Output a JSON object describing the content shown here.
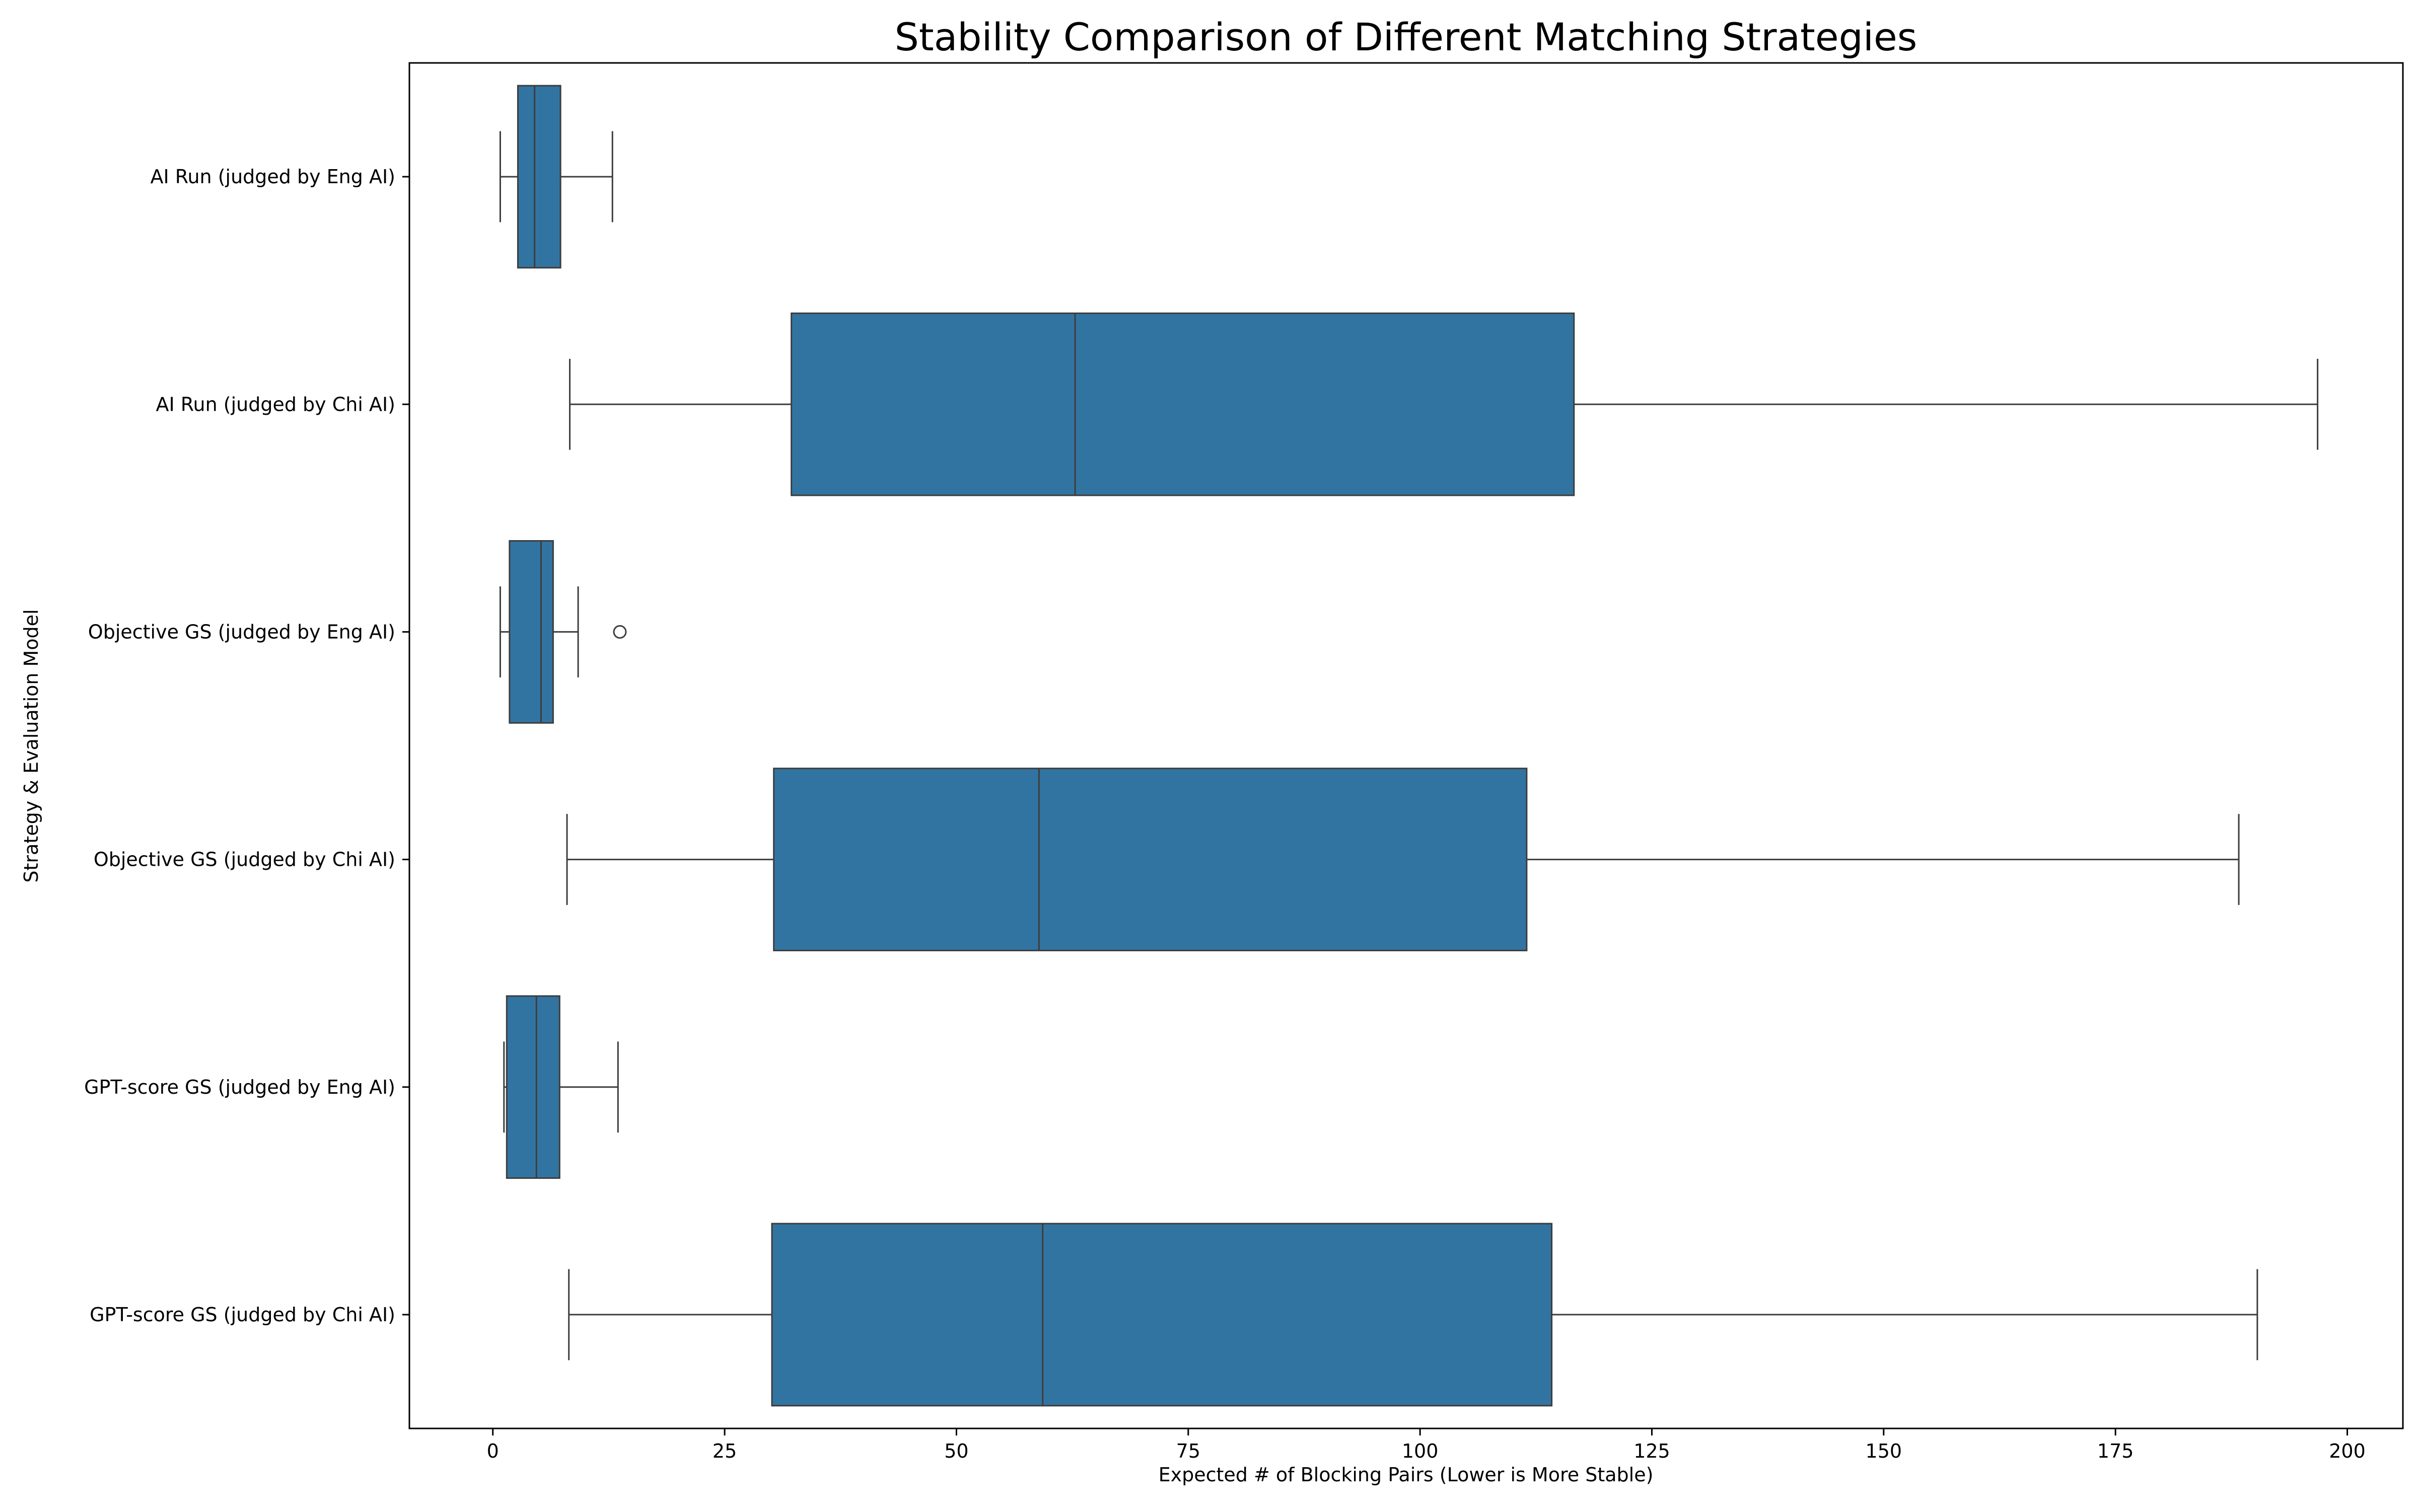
{
  "chart_data": {
    "type": "box",
    "orientation": "horizontal",
    "title": "Stability Comparison of Different Matching Strategies",
    "xlabel": "Expected # of Blocking Pairs (Lower is More Stable)",
    "ylabel": "Strategy & Evaluation Model",
    "xlim": [
      -9,
      206
    ],
    "xticks": [
      0,
      25,
      50,
      75,
      100,
      125,
      150,
      175,
      200
    ],
    "grid": false,
    "legend": "none",
    "box_color": "#3274a1",
    "line_color": "#3d3d3d",
    "categories": [
      "AI Run (judged by Eng AI)",
      "AI Run (judged by Chi AI)",
      "Objective GS (judged by Eng AI)",
      "Objective GS (judged by Chi AI)",
      "GPT-score GS (judged by Eng AI)",
      "GPT-score GS (judged by Chi AI)"
    ],
    "boxes": [
      {
        "whisker_low": 0.8,
        "q1": 2.7,
        "median": 4.5,
        "q3": 7.3,
        "whisker_high": 12.9,
        "outliers": []
      },
      {
        "whisker_low": 8.3,
        "q1": 32.2,
        "median": 62.8,
        "q3": 116.6,
        "whisker_high": 196.8,
        "outliers": []
      },
      {
        "whisker_low": 0.8,
        "q1": 1.8,
        "median": 5.2,
        "q3": 6.5,
        "whisker_high": 9.2,
        "outliers": [
          13.7
        ]
      },
      {
        "whisker_low": 8.0,
        "q1": 30.3,
        "median": 58.9,
        "q3": 111.5,
        "whisker_high": 188.3,
        "outliers": []
      },
      {
        "whisker_low": 1.2,
        "q1": 1.5,
        "median": 4.7,
        "q3": 7.2,
        "whisker_high": 13.5,
        "outliers": []
      },
      {
        "whisker_low": 8.2,
        "q1": 30.1,
        "median": 59.3,
        "q3": 114.2,
        "whisker_high": 190.3,
        "outliers": []
      }
    ]
  }
}
